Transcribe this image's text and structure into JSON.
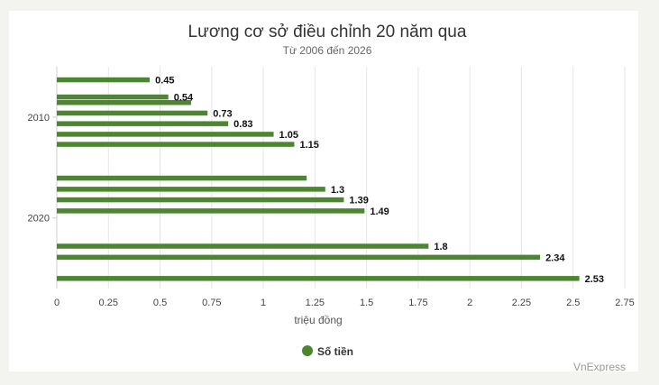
{
  "chart_data": {
    "type": "bar",
    "orientation": "horizontal",
    "title": "Lương cơ sở điều chỉnh 20 năm qua",
    "subtitle": "Từ 2006 đến 2026",
    "xlabel": "triệu đồng",
    "ylabel": "",
    "xlim": [
      0,
      2.75
    ],
    "x_ticks": [
      "0",
      "0.25",
      "0.5",
      "0.75",
      "1",
      "1.25",
      "1.5",
      "1.75",
      "2",
      "2.25",
      "2.5",
      "2.75"
    ],
    "y_ticks": [
      "2010",
      "2020"
    ],
    "ylim": [
      2005,
      2027
    ],
    "grid": "vertical",
    "legend_position": "bottom",
    "color": "#4c8630",
    "series": [
      {
        "name": "Số tiền",
        "points": [
          {
            "x": 0.45,
            "y": 2006.3,
            "label": "0.45"
          },
          {
            "x": 0.54,
            "y": 2008.0,
            "label": "0.54"
          },
          {
            "x": 0.65,
            "y": 2008.55,
            "label": ""
          },
          {
            "x": 0.73,
            "y": 2009.6,
            "label": "0.73"
          },
          {
            "x": 0.83,
            "y": 2010.65,
            "label": "0.83"
          },
          {
            "x": 1.05,
            "y": 2011.7,
            "label": "1.05"
          },
          {
            "x": 1.15,
            "y": 2012.7,
            "label": "1.15"
          },
          {
            "x": 1.21,
            "y": 2016.05,
            "label": ""
          },
          {
            "x": 1.3,
            "y": 2017.15,
            "label": "1.3"
          },
          {
            "x": 1.39,
            "y": 2018.2,
            "label": "1.39"
          },
          {
            "x": 1.49,
            "y": 2019.3,
            "label": "1.49"
          },
          {
            "x": 1.8,
            "y": 2022.8,
            "label": "1.8"
          },
          {
            "x": 2.34,
            "y": 2023.9,
            "label": "2.34"
          },
          {
            "x": 2.53,
            "y": 2026.0,
            "label": "2.53"
          }
        ]
      }
    ]
  },
  "credit": "VnExpress"
}
